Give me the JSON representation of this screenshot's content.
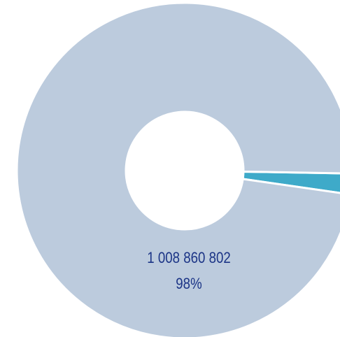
{
  "chart_data": {
    "type": "donut",
    "categories": [
      null,
      null
    ],
    "values": [
      20590000,
      1008860802
    ],
    "value_labels": [
      null,
      "1 008 860 802"
    ],
    "percent_labels": [
      null,
      "98%"
    ],
    "colors": [
      "#3eaac9",
      "#bccbdd"
    ]
  }
}
